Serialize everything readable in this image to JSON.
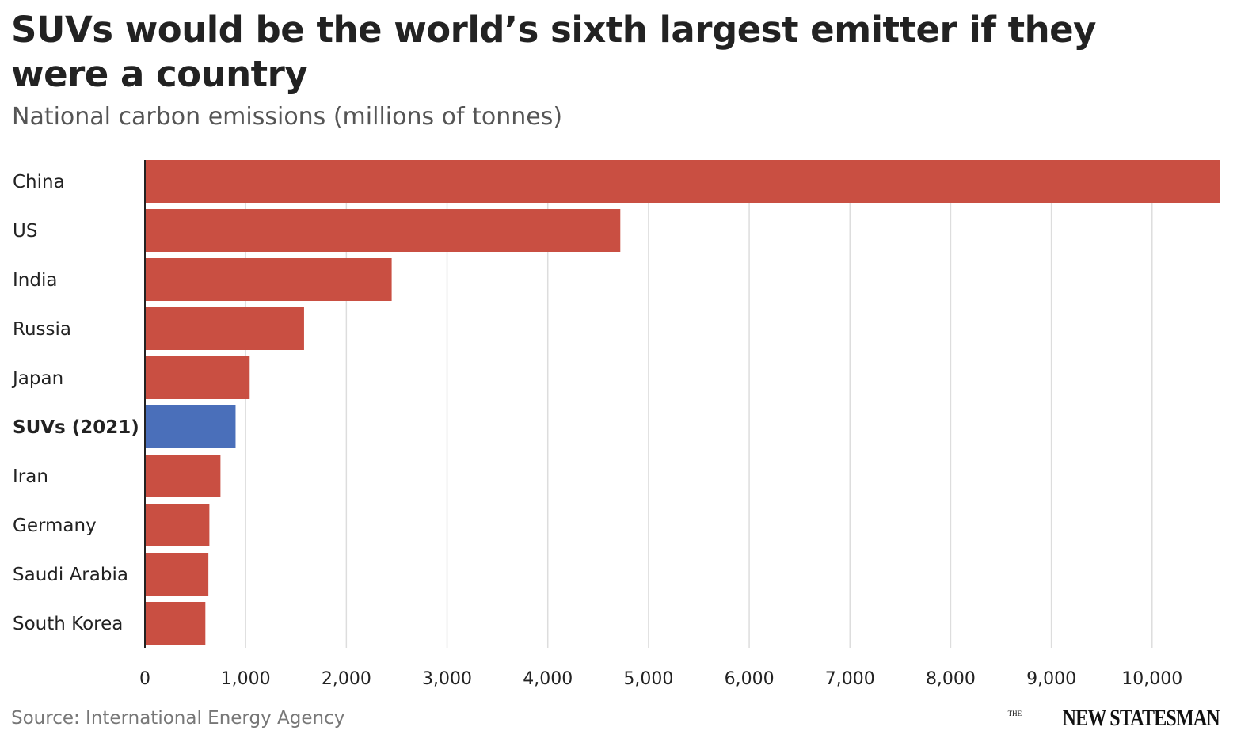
{
  "title": "SUVs would be the world’s sixth largest emitter if they were a country",
  "subtitle": "National carbon emissions (millions of tonnes)",
  "source": "Source: International Energy Agency",
  "logo": {
    "the": "THE",
    "name": "NEW STATESMAN"
  },
  "chart_data": {
    "type": "bar",
    "orientation": "horizontal",
    "title": "SUVs would be the world’s sixth largest emitter if they were a country",
    "subtitle": "National carbon emissions (millions of tonnes)",
    "categories": [
      "China",
      "US",
      "India",
      "Russia",
      "Japan",
      "SUVs (2021)",
      "Iran",
      "Germany",
      "Saudi Arabia",
      "South Korea"
    ],
    "values": [
      10670,
      4720,
      2450,
      1580,
      1040,
      900,
      750,
      640,
      630,
      600
    ],
    "highlight": "SUVs (2021)",
    "xlim": [
      0,
      10670
    ],
    "xticks": [
      0,
      1000,
      2000,
      3000,
      4000,
      5000,
      6000,
      7000,
      8000,
      9000,
      10000
    ],
    "xtick_labels": [
      "0",
      "1,000",
      "2,000",
      "3,000",
      "4,000",
      "5,000",
      "6,000",
      "7,000",
      "8,000",
      "9,000",
      "10,000"
    ],
    "grid": "vertical",
    "colors": {
      "bar": "#c94f42",
      "highlight": "#4a6fba",
      "grid": "#dddddd",
      "axis": "#222222"
    }
  }
}
